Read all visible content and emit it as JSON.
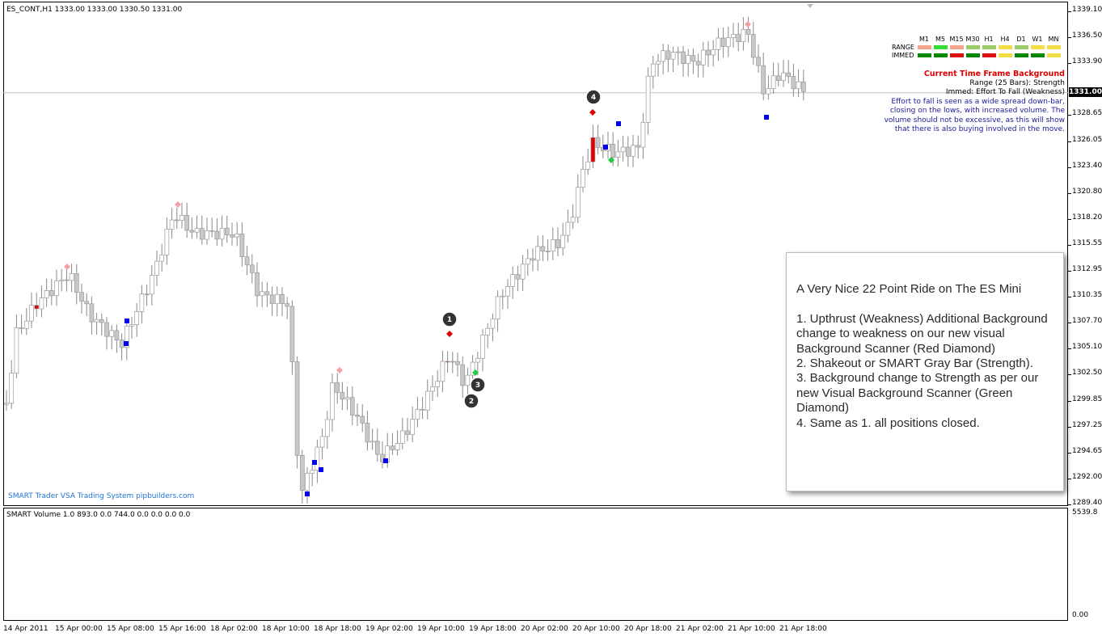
{
  "main_chart": {
    "title": "ES_CONT,H1  1333.00 1333.00 1330.50 1331.00",
    "current_price": "1331.00",
    "footer_brand": "SMART Trader VSA Trading System pipbuilders.com"
  },
  "volume_chart": {
    "title": "SMART Volume 1.0 893.0 0.0 744.0 0.0 0.0 0.0 0.0",
    "max_label": "5539.8",
    "min_label": "0.00"
  },
  "price_axis": [
    "1339.10",
    "1336.50",
    "1333.90",
    "1331.00",
    "1328.65",
    "1326.05",
    "1323.40",
    "1320.80",
    "1318.20",
    "1315.55",
    "1312.95",
    "1310.35",
    "1307.70",
    "1305.10",
    "1302.50",
    "1299.85",
    "1297.25",
    "1294.65",
    "1292.00",
    "1289.40"
  ],
  "date_axis": [
    "14 Apr 2011",
    "15 Apr 00:00",
    "15 Apr 08:00",
    "15 Apr 16:00",
    "18 Apr 02:00",
    "18 Apr 10:00",
    "18 Apr 18:00",
    "19 Apr 02:00",
    "19 Apr 10:00",
    "19 Apr 18:00",
    "20 Apr 02:00",
    "20 Apr 10:00",
    "20 Apr 18:00",
    "21 Apr 02:00",
    "21 Apr 10:00",
    "21 Apr 18:00"
  ],
  "scanner": {
    "headers": [
      "M1",
      "M5",
      "M15",
      "M30",
      "H1",
      "H4",
      "D1",
      "W1",
      "MN"
    ],
    "rows": [
      {
        "label": "RANGE",
        "colors": [
          "#f4a48a",
          "#33dd33",
          "#f4a48a",
          "#99cc66",
          "#99cc66",
          "#eedd44",
          "#99cc66",
          "#eedd44",
          "#eedd44"
        ]
      },
      {
        "label": "IMMED",
        "colors": [
          "#008800",
          "#008800",
          "#dd1111",
          "#008800",
          "#dd1111",
          "#eedd44",
          "#008800",
          "#008800",
          "#eedd44"
        ]
      }
    ]
  },
  "info_panel": {
    "heading": "Current Time Frame Background",
    "range_line": "Range (25 Bars): Strength",
    "immed_line": "Immed: Effort To Fall (Weakness)",
    "description": "Effort to fall is seen as a wide spread down-bar, closing on the lows, with increased volume. The volume should not be excessive, as this will show that there is also buying involved in the move."
  },
  "annotation": {
    "lines": [
      "A Very Nice 22 Point Ride on The ES Mini",
      "",
      "1. Upthrust (Weakness) Additional Background change to weakness on our new visual Background Scanner (Red Diamond)",
      "2. Shakeout or SMART Gray Bar (Strength).",
      "3. Background change to Strength as per our new Visual Background Scanner (Green Diamond)",
      "4. Same as 1. all positions closed."
    ]
  },
  "markers": [
    "1",
    "2",
    "3",
    "4"
  ],
  "colors": {
    "accent": "#00e5ee",
    "up_bar": "#ffffff",
    "neutral_bar": "#c8c8c8",
    "red_bar": "#e00000",
    "volume_blue": "#1ab0f0",
    "volume_green": "#22ee22",
    "volume_gray": "#d8d8d8",
    "volume_darkred": "#7a0000"
  }
}
